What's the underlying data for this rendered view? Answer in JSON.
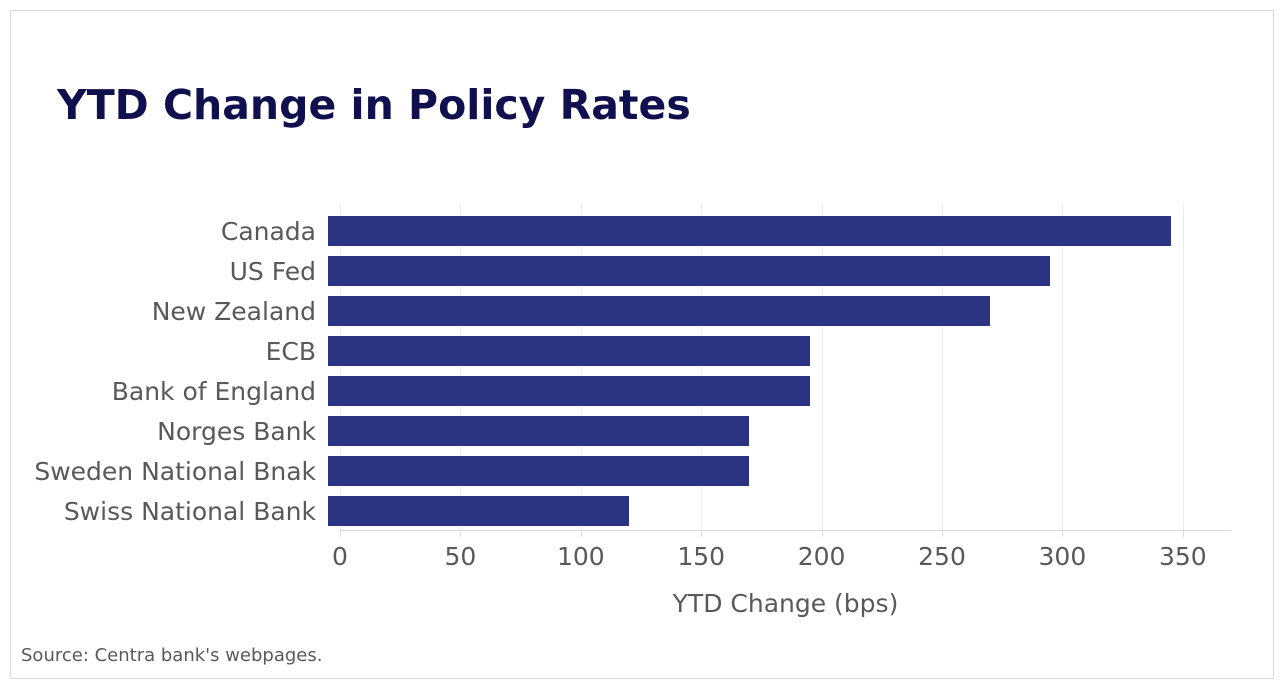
{
  "title": "YTD Change in Policy Rates",
  "source": "Source: Centra bank's webpages.",
  "colors": {
    "bar": "#2b3482",
    "title": "#10104e",
    "text": "#595959",
    "grid": "#ececec",
    "axis": "#d9d9d9",
    "card_border": "#d9d9d9"
  },
  "chart_data": {
    "type": "bar",
    "orientation": "horizontal",
    "title": "YTD Change in Policy Rates",
    "categories": [
      "Canada",
      "US Fed",
      "New Zealand",
      "ECB",
      "Bank of England",
      "Norges Bank",
      "Sweden National Bnak",
      "Swiss National Bank"
    ],
    "values": [
      350,
      300,
      275,
      200,
      200,
      175,
      175,
      125
    ],
    "xlabel": "YTD Change (bps)",
    "ylabel": "",
    "xticks": [
      0,
      50,
      100,
      150,
      200,
      250,
      300,
      350
    ],
    "xlim": [
      0,
      370
    ],
    "grid": true,
    "legend": false,
    "bar_color": "#2b3482",
    "source": "Source: Centra bank's webpages."
  }
}
